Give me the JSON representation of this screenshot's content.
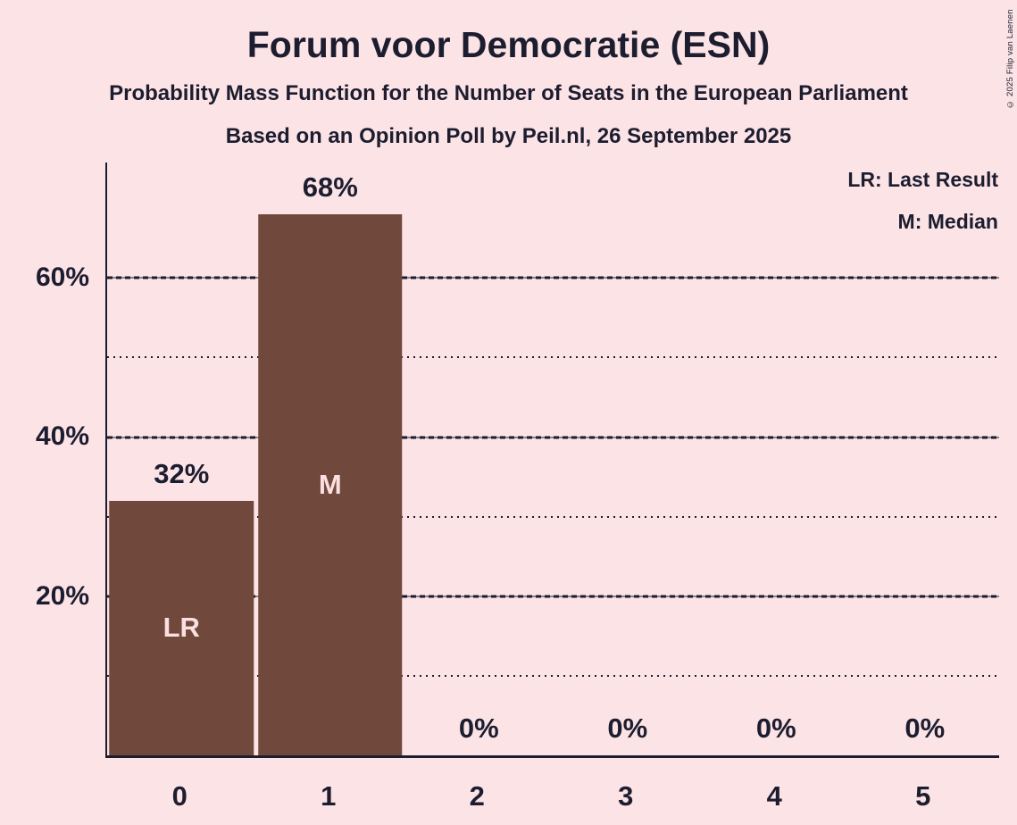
{
  "header": {
    "title": "Forum voor Democratie (ESN)",
    "subtitle_line1": "Probability Mass Function for the Number of Seats in the European Parliament",
    "subtitle_line2": "Based on an Opinion Poll by Peil.nl, 26 September 2025"
  },
  "copyright": "© 2025 Filip van Laenen",
  "legend": {
    "last_result": "LR: Last Result",
    "median": "M: Median"
  },
  "colors": {
    "background": "#fce4e6",
    "ink": "#1d1d30",
    "bar": "#70483c",
    "bar_annotation_text": "#fbdfe1"
  },
  "chart_data": {
    "type": "bar",
    "title": "Forum voor Democratie (ESN)",
    "categories": [
      "0",
      "1",
      "2",
      "3",
      "4",
      "5"
    ],
    "values": [
      32,
      68,
      0,
      0,
      0,
      0
    ],
    "value_labels": [
      "32%",
      "68%",
      "0%",
      "0%",
      "0%",
      "0%"
    ],
    "annotations": [
      {
        "category_index": 0,
        "label": "LR",
        "meaning": "Last Result"
      },
      {
        "category_index": 1,
        "label": "M",
        "meaning": "Median"
      }
    ],
    "y_ticks": [
      {
        "label": "20%",
        "value": 20
      },
      {
        "label": "40%",
        "value": 40
      },
      {
        "label": "60%",
        "value": 60
      }
    ],
    "gridlines": [
      {
        "value": 10,
        "style": "dotted"
      },
      {
        "value": 20,
        "style": "solid"
      },
      {
        "value": 30,
        "style": "dotted"
      },
      {
        "value": 40,
        "style": "solid"
      },
      {
        "value": 50,
        "style": "dotted"
      },
      {
        "value": 60,
        "style": "solid"
      }
    ],
    "ylim": [
      0,
      74.5
    ],
    "grid": "horizontal",
    "legend_position": "top-right"
  }
}
